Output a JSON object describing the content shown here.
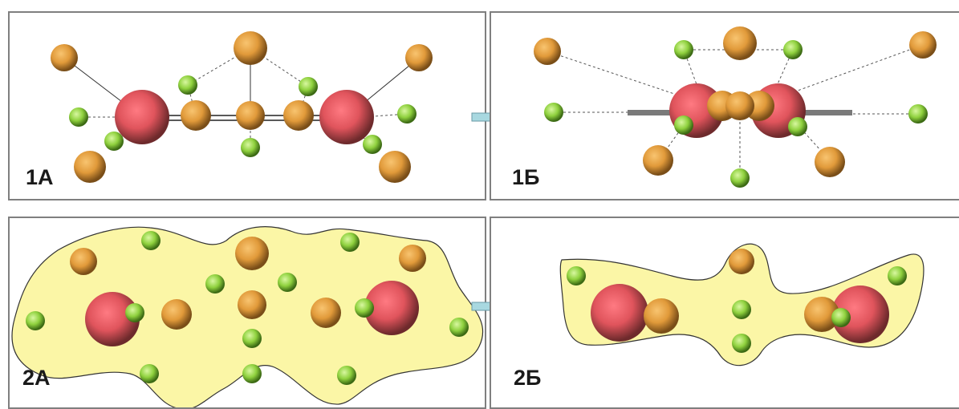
{
  "panels": {
    "p1a": {
      "label": "1А"
    },
    "p1b": {
      "label": "1Б"
    },
    "p2a": {
      "label": "2А"
    },
    "p2b": {
      "label": "2Б"
    }
  },
  "colors": {
    "large_atom": "#e0545c",
    "medium_atom": "#e19a3a",
    "small_atom": "#8fd13e",
    "density_cloud": "#fbf6a6",
    "arrow": "#a8d8e0",
    "frame": "#7f7f7f"
  }
}
